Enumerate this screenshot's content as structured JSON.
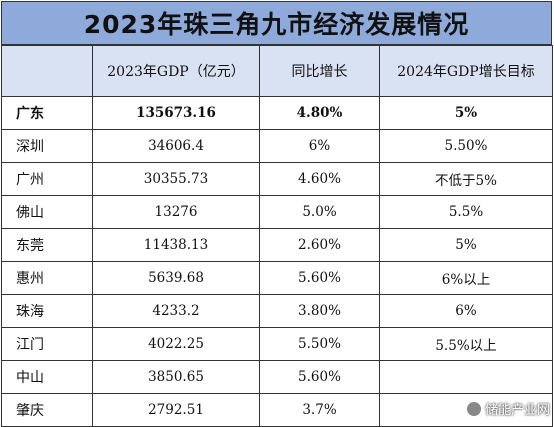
{
  "title": "2023年珠三角九市经济发展情况",
  "columns": [
    "",
    "2023年GDP（亿元）",
    "同比增长",
    "2024年GDP增长目标"
  ],
  "rows": [
    {
      "city": "广东",
      "gdp": "135673.16",
      "growth": "4.80%",
      "target": "5%"
    },
    {
      "city": "深圳",
      "gdp": "34606.4",
      "growth": "6%",
      "target": "5.50%"
    },
    {
      "city": "广州",
      "gdp": "30355.73",
      "growth": "4.60%",
      "target": "不低于5%"
    },
    {
      "city": "佛山",
      "gdp": "13276",
      "growth": "5.0%",
      "target": "5.5%"
    },
    {
      "city": "东莞",
      "gdp": "11438.13",
      "growth": "2.60%",
      "target": "5%"
    },
    {
      "city": "惠州",
      "gdp": "5639.68",
      "growth": "5.60%",
      "target": "6%以上"
    },
    {
      "city": "珠海",
      "gdp": "4233.2",
      "growth": "3.80%",
      "target": "6%"
    },
    {
      "city": "江门",
      "gdp": "4022.25",
      "growth": "5.50%",
      "target": "5.5%以上"
    },
    {
      "city": "中山",
      "gdp": "3850.65",
      "growth": "5.60%",
      "target": ""
    },
    {
      "city": "肇庆",
      "gdp": "2792.51",
      "growth": "3.7%",
      "target": ""
    }
  ],
  "watermark": {
    "text": "储能产业网",
    "icon": "wechat-logo-icon"
  },
  "colors": {
    "title_bg": "#8eaadb",
    "header_bg": "#d9e2f3",
    "border": "#333333"
  }
}
